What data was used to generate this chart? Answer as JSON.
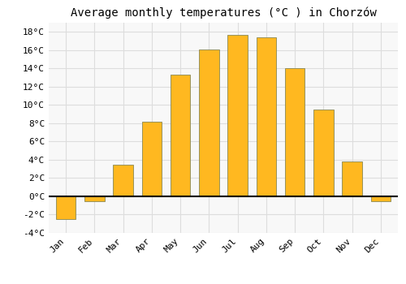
{
  "months": [
    "Jan",
    "Feb",
    "Mar",
    "Apr",
    "May",
    "Jun",
    "Jul",
    "Aug",
    "Sep",
    "Oct",
    "Nov",
    "Dec"
  ],
  "values": [
    -2.5,
    -0.5,
    3.5,
    8.2,
    13.3,
    16.1,
    17.7,
    17.4,
    14.0,
    9.5,
    3.8,
    -0.5
  ],
  "bar_color": "#FFB820",
  "bar_edge_color": "#888855",
  "title": "Average monthly temperatures (°C ) in Chorzów",
  "ylim": [
    -4,
    19
  ],
  "yticks": [
    -4,
    -2,
    0,
    2,
    4,
    6,
    8,
    10,
    12,
    14,
    16,
    18
  ],
  "grid_color": "#dddddd",
  "background_color": "#ffffff",
  "plot_bg_color": "#f8f8f8",
  "zero_line_color": "#000000",
  "title_fontsize": 10,
  "tick_fontsize": 8,
  "font_family": "monospace"
}
